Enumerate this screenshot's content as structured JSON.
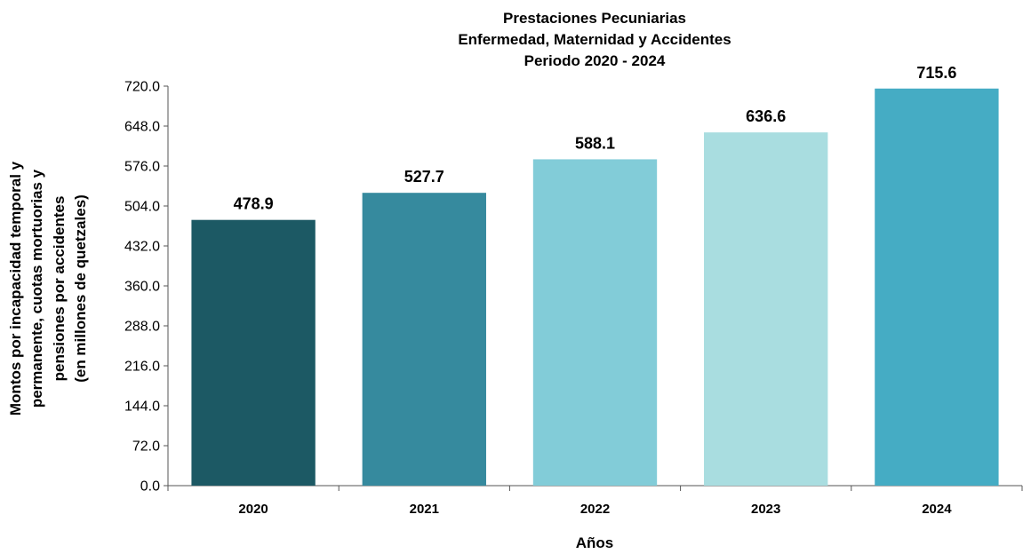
{
  "chart_data": {
    "type": "bar",
    "title_lines": [
      "Prestaciones Pecuniarias",
      "Enfermedad, Maternidad y Accidentes",
      "Periodo 2020 - 2024"
    ],
    "ylabel_lines": [
      "Montos por incapacidad temporal y",
      "permanente, cuotas mortuorias y",
      "pensiones por accidentes",
      "(en millones de quetzales)"
    ],
    "xlabel": "Años",
    "categories": [
      "2020",
      "2021",
      "2022",
      "2023",
      "2024"
    ],
    "values": [
      478.9,
      527.7,
      588.1,
      636.6,
      715.6
    ],
    "value_labels": [
      "478.9",
      "527.7",
      "588.1",
      "636.6",
      "715.6"
    ],
    "bar_colors": [
      "#1c5964",
      "#368a9e",
      "#82ccd8",
      "#a9dde0",
      "#45acc4"
    ],
    "ylim": [
      0,
      720
    ],
    "yticks": [
      0,
      72,
      144,
      216,
      288,
      360,
      432,
      504,
      576,
      648,
      720
    ],
    "ytick_labels": [
      "0.0",
      "72.0",
      "144.0",
      "216.0",
      "288.0",
      "360.0",
      "432.0",
      "504.0",
      "576.0",
      "648.0",
      "720.0"
    ],
    "grid": false,
    "legend": "none"
  }
}
